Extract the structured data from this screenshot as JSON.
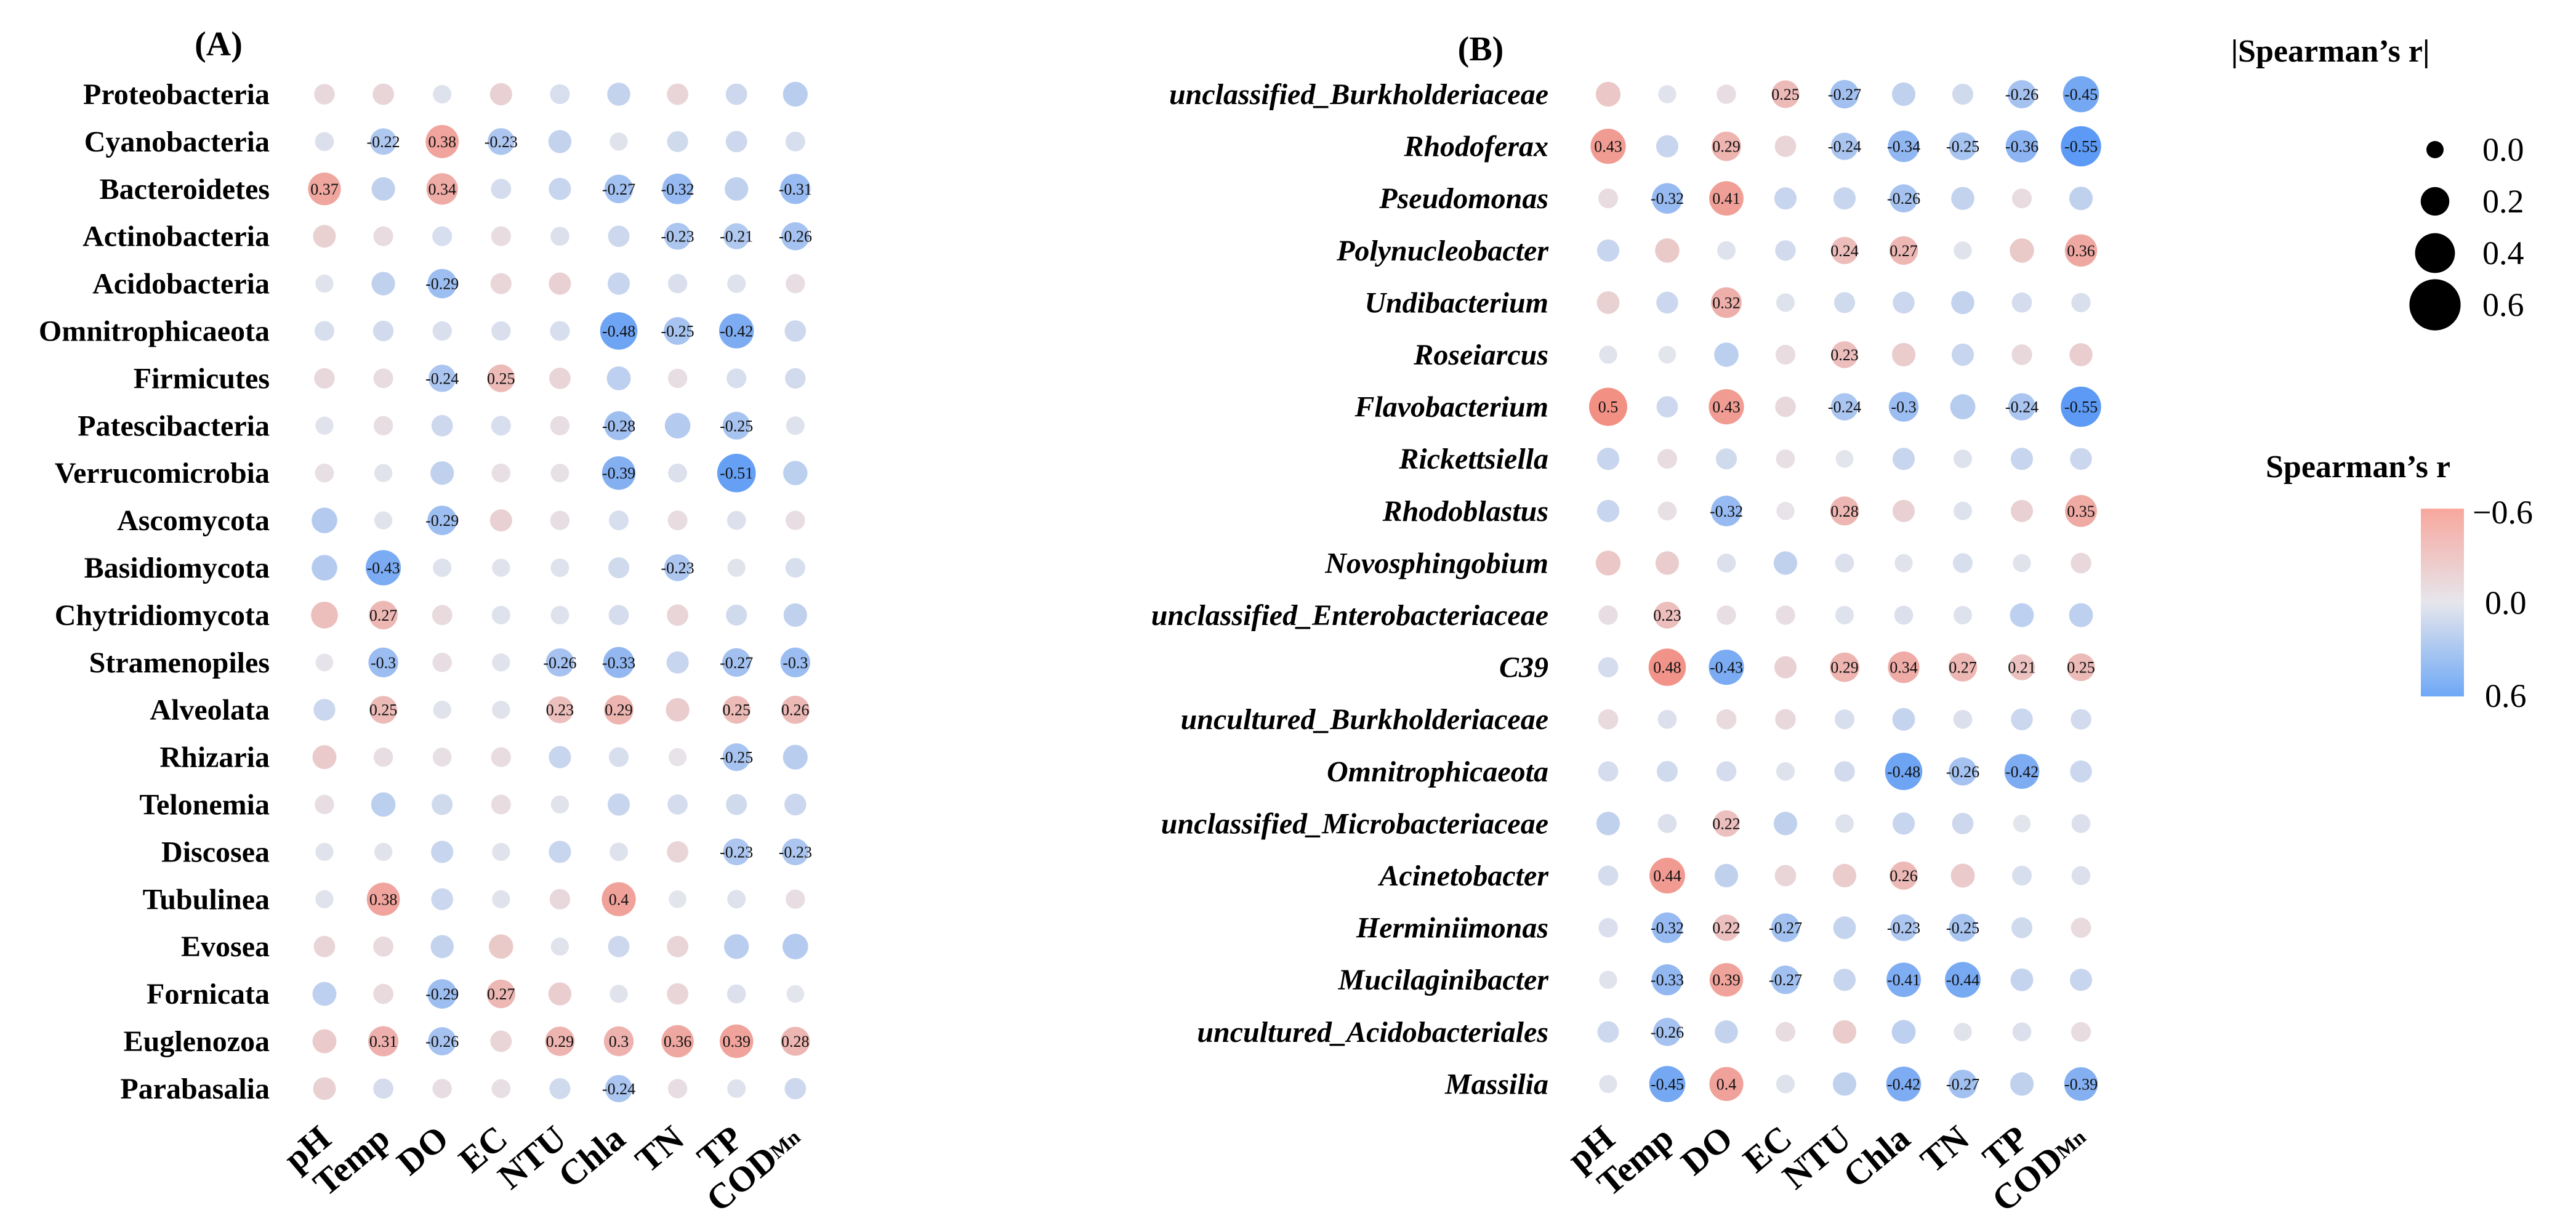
{
  "colors": {
    "positive": "#f4877a",
    "neutral": "#e6e6ec",
    "negative": "#5c9af5",
    "legend_top": "#f8a79e",
    "legend_bottom": "#6ea8f6"
  },
  "chart_data": [
    {
      "type": "heatmap",
      "title": "(A)",
      "columns": [
        "pH",
        "Temp",
        "DO",
        "EC",
        "NTU",
        "Chla",
        "TN",
        "TP",
        "COD"
      ],
      "column_subscript": {
        "COD": "Mn"
      },
      "rows": [
        "Proteobacteria",
        "Cyanobacteria",
        "Bacteroidetes",
        "Actinobacteria",
        "Acidobacteria",
        "Omnitrophicaeota",
        "Firmicutes",
        "Patescibacteria",
        "Verrucomicrobia",
        "Ascomycota",
        "Basidiomycota",
        "Chytridiomycota",
        "Stramenopiles",
        "Alveolata",
        "Rhizaria",
        "Telonemia",
        "Discosea",
        "Tubulinea",
        "Evosea",
        "Fornicata",
        "Euglenozoa",
        "Parabasalia"
      ],
      "row_italic": false,
      "values": [
        [
          0.08,
          0.1,
          -0.03,
          0.12,
          -0.06,
          -0.14,
          0.1,
          -0.1,
          -0.18
        ],
        [
          -0.04,
          -0.22,
          0.38,
          -0.23,
          -0.14,
          -0.02,
          -0.09,
          -0.1,
          -0.06
        ],
        [
          0.37,
          -0.15,
          0.34,
          -0.07,
          -0.12,
          -0.27,
          -0.32,
          -0.15,
          -0.31
        ],
        [
          0.13,
          0.06,
          -0.06,
          0.06,
          -0.04,
          -0.1,
          -0.23,
          -0.21,
          -0.26
        ],
        [
          -0.02,
          -0.15,
          -0.29,
          0.09,
          0.12,
          -0.12,
          -0.05,
          -0.03,
          0.05
        ],
        [
          -0.06,
          -0.08,
          -0.05,
          -0.05,
          -0.06,
          -0.48,
          -0.25,
          -0.42,
          -0.1
        ],
        [
          0.08,
          0.06,
          -0.24,
          0.25,
          0.1,
          -0.16,
          0.05,
          -0.06,
          -0.08
        ],
        [
          -0.02,
          0.05,
          -0.1,
          -0.06,
          0.05,
          -0.28,
          -0.2,
          -0.25,
          -0.03
        ],
        [
          0.04,
          -0.02,
          -0.15,
          0.04,
          0.03,
          -0.39,
          -0.04,
          -0.51,
          -0.17
        ],
        [
          -0.2,
          -0.02,
          -0.29,
          0.12,
          0.05,
          -0.06,
          0.06,
          -0.04,
          0.05
        ],
        [
          -0.2,
          -0.43,
          -0.03,
          -0.02,
          -0.03,
          -0.09,
          -0.23,
          -0.02,
          -0.06
        ],
        [
          0.23,
          0.27,
          0.07,
          -0.03,
          -0.03,
          -0.07,
          0.1,
          -0.09,
          -0.15
        ],
        [
          0.01,
          -0.3,
          0.05,
          -0.02,
          -0.26,
          -0.33,
          -0.12,
          -0.27,
          -0.3
        ],
        [
          -0.11,
          0.25,
          -0.02,
          -0.02,
          0.23,
          0.29,
          0.15,
          0.25,
          0.26
        ],
        [
          0.16,
          0.05,
          0.04,
          0.06,
          -0.12,
          -0.06,
          0.02,
          -0.25,
          -0.18
        ],
        [
          0.05,
          -0.17,
          -0.09,
          0.06,
          -0.02,
          -0.12,
          -0.07,
          -0.09,
          -0.11
        ],
        [
          -0.02,
          -0.02,
          -0.12,
          -0.02,
          -0.12,
          -0.03,
          0.1,
          -0.23,
          -0.23
        ],
        [
          -0.02,
          0.38,
          -0.11,
          -0.02,
          0.08,
          0.4,
          -0.01,
          -0.03,
          0.05
        ],
        [
          0.1,
          0.07,
          -0.14,
          0.17,
          -0.02,
          -0.1,
          0.1,
          -0.18,
          -0.2
        ],
        [
          -0.16,
          0.07,
          -0.29,
          0.27,
          0.14,
          -0.02,
          0.1,
          -0.04,
          -0.01
        ],
        [
          0.16,
          0.31,
          -0.26,
          0.1,
          0.29,
          0.3,
          0.36,
          0.39,
          0.28
        ],
        [
          0.13,
          -0.07,
          0.05,
          0.04,
          -0.09,
          -0.24,
          0.05,
          -0.03,
          -0.1
        ]
      ],
      "labels": [
        [
          null,
          null,
          null,
          null,
          null,
          null,
          null,
          null,
          null
        ],
        [
          null,
          "-0.22",
          "0.38",
          "-0.23",
          null,
          null,
          null,
          null,
          null
        ],
        [
          "0.37",
          null,
          "0.34",
          null,
          null,
          "-0.27",
          "-0.32",
          null,
          "-0.31"
        ],
        [
          null,
          null,
          null,
          null,
          null,
          null,
          "-0.23",
          "-0.21",
          "-0.26"
        ],
        [
          null,
          null,
          "-0.29",
          null,
          null,
          null,
          null,
          null,
          null
        ],
        [
          null,
          null,
          null,
          null,
          null,
          "-0.48",
          "-0.25",
          "-0.42",
          null
        ],
        [
          null,
          null,
          "-0.24",
          "0.25",
          null,
          null,
          null,
          null,
          null
        ],
        [
          null,
          null,
          null,
          null,
          null,
          "-0.28",
          null,
          "-0.25",
          null
        ],
        [
          null,
          null,
          null,
          null,
          null,
          "-0.39",
          null,
          "-0.51",
          null
        ],
        [
          null,
          null,
          "-0.29",
          null,
          null,
          null,
          null,
          null,
          null
        ],
        [
          null,
          "-0.43",
          null,
          null,
          null,
          null,
          "-0.23",
          null,
          null
        ],
        [
          null,
          "0.27",
          null,
          null,
          null,
          null,
          null,
          null,
          null
        ],
        [
          null,
          "-0.3",
          null,
          null,
          "-0.26",
          "-0.33",
          null,
          "-0.27",
          "-0.3"
        ],
        [
          null,
          "0.25",
          null,
          null,
          "0.23",
          "0.29",
          null,
          "0.25",
          "0.26"
        ],
        [
          null,
          null,
          null,
          null,
          null,
          null,
          null,
          "-0.25",
          null
        ],
        [
          null,
          null,
          null,
          null,
          null,
          null,
          null,
          null,
          null
        ],
        [
          null,
          null,
          null,
          null,
          null,
          null,
          null,
          "-0.23",
          "-0.23"
        ],
        [
          null,
          "0.38",
          null,
          null,
          null,
          "0.4",
          null,
          null,
          null
        ],
        [
          null,
          null,
          null,
          null,
          null,
          null,
          null,
          null,
          null
        ],
        [
          null,
          null,
          "-0.29",
          "0.27",
          null,
          null,
          null,
          null,
          null
        ],
        [
          null,
          "0.31",
          "-0.26",
          null,
          "0.29",
          "0.3",
          "0.36",
          "0.39",
          "0.28"
        ],
        [
          null,
          null,
          null,
          null,
          null,
          "-0.24",
          null,
          null,
          null
        ]
      ]
    },
    {
      "type": "heatmap",
      "title": "(B)",
      "columns": [
        "pH",
        "Temp",
        "DO",
        "EC",
        "NTU",
        "Chla",
        "TN",
        "TP",
        "COD"
      ],
      "column_subscript": {
        "COD": "Mn"
      },
      "rows": [
        "unclassified_Burkholderiaceae",
        "Rhodoferax",
        "Pseudomonas",
        "Polynucleobacter",
        "Undibacterium",
        "Roseiarcus",
        "Flavobacterium",
        "Rickettsiella",
        "Rhodoblastus",
        "Novosphingobium",
        "unclassified_Enterobacteriaceae",
        "C39",
        "uncultured_Burkholderiaceae",
        "Omnitrophicaeota",
        "unclassified_Microbacteriaceae",
        "Acinetobacter",
        "Herminiimonas",
        "Mucilaginibacter",
        "uncultured_Acidobacteriales",
        "Massilia"
      ],
      "row_italic": true,
      "values": [
        [
          0.18,
          -0.02,
          0.05,
          0.25,
          -0.27,
          -0.15,
          -0.09,
          -0.26,
          -0.45
        ],
        [
          0.43,
          -0.12,
          0.29,
          0.1,
          -0.24,
          -0.34,
          -0.25,
          -0.36,
          -0.55
        ],
        [
          0.06,
          -0.32,
          0.41,
          -0.12,
          -0.12,
          -0.26,
          -0.14,
          0.06,
          -0.15
        ],
        [
          -0.12,
          0.17,
          -0.03,
          -0.08,
          0.24,
          0.27,
          -0.02,
          0.17,
          0.36
        ],
        [
          0.13,
          -0.11,
          0.32,
          -0.03,
          -0.09,
          -0.11,
          -0.14,
          -0.07,
          -0.05
        ],
        [
          -0.02,
          -0.01,
          -0.17,
          0.06,
          0.23,
          0.15,
          -0.12,
          0.08,
          0.14
        ],
        [
          0.5,
          -0.1,
          0.43,
          0.08,
          -0.24,
          -0.3,
          -0.19,
          -0.24,
          -0.55
        ],
        [
          -0.12,
          0.06,
          -0.09,
          0.04,
          -0.01,
          -0.12,
          -0.03,
          -0.12,
          -0.11
        ],
        [
          -0.12,
          0.04,
          -0.32,
          0.02,
          0.28,
          0.12,
          -0.03,
          0.12,
          0.35
        ],
        [
          0.18,
          0.15,
          -0.04,
          -0.15,
          -0.04,
          -0.02,
          -0.06,
          -0.02,
          0.08
        ],
        [
          0.05,
          0.23,
          0.05,
          0.05,
          -0.03,
          -0.04,
          -0.03,
          -0.16,
          -0.16
        ],
        [
          -0.07,
          0.48,
          -0.43,
          0.12,
          0.29,
          0.34,
          0.27,
          0.21,
          0.25
        ],
        [
          0.07,
          -0.04,
          0.07,
          0.08,
          -0.06,
          -0.13,
          -0.04,
          -0.11,
          -0.08
        ],
        [
          -0.07,
          -0.09,
          -0.07,
          -0.03,
          -0.08,
          -0.48,
          -0.26,
          -0.42,
          -0.11
        ],
        [
          -0.15,
          -0.04,
          0.22,
          -0.15,
          -0.03,
          -0.12,
          -0.1,
          -0.01,
          -0.04
        ],
        [
          -0.07,
          0.44,
          -0.15,
          0.1,
          0.15,
          0.26,
          0.16,
          -0.06,
          -0.04
        ],
        [
          -0.05,
          -0.32,
          0.22,
          -0.27,
          -0.13,
          -0.23,
          -0.25,
          -0.09,
          0.07
        ],
        [
          -0.02,
          -0.33,
          0.39,
          -0.27,
          -0.12,
          -0.41,
          -0.44,
          -0.13,
          -0.12
        ],
        [
          -0.1,
          -0.26,
          -0.14,
          0.06,
          0.15,
          -0.16,
          -0.02,
          -0.04,
          0.06
        ],
        [
          -0.02,
          -0.45,
          0.4,
          -0.03,
          -0.15,
          -0.42,
          -0.27,
          -0.15,
          -0.39
        ]
      ],
      "labels": [
        [
          null,
          null,
          null,
          "0.25",
          "-0.27",
          null,
          null,
          "-0.26",
          "-0.45"
        ],
        [
          "0.43",
          null,
          "0.29",
          null,
          "-0.24",
          "-0.34",
          "-0.25",
          "-0.36",
          "-0.55"
        ],
        [
          null,
          "-0.32",
          "0.41",
          null,
          null,
          "-0.26",
          null,
          null,
          null
        ],
        [
          null,
          null,
          null,
          null,
          "0.24",
          "0.27",
          null,
          null,
          "0.36"
        ],
        [
          null,
          null,
          "0.32",
          null,
          null,
          null,
          null,
          null,
          null
        ],
        [
          null,
          null,
          null,
          null,
          "0.23",
          null,
          null,
          null,
          null
        ],
        [
          "0.5",
          null,
          "0.43",
          null,
          "-0.24",
          "-0.3",
          null,
          "-0.24",
          "-0.55"
        ],
        [
          null,
          null,
          null,
          null,
          null,
          null,
          null,
          null,
          null
        ],
        [
          null,
          null,
          "-0.32",
          null,
          "0.28",
          null,
          null,
          null,
          "0.35"
        ],
        [
          null,
          null,
          null,
          null,
          null,
          null,
          null,
          null,
          null
        ],
        [
          null,
          "0.23",
          null,
          null,
          null,
          null,
          null,
          null,
          null
        ],
        [
          null,
          "0.48",
          "-0.43",
          null,
          "0.29",
          "0.34",
          "0.27",
          "0.21",
          "0.25"
        ],
        [
          null,
          null,
          null,
          null,
          null,
          null,
          null,
          null,
          null
        ],
        [
          null,
          null,
          null,
          null,
          null,
          "-0.48",
          "-0.26",
          "-0.42",
          null
        ],
        [
          null,
          null,
          "0.22",
          null,
          null,
          null,
          null,
          null,
          null
        ],
        [
          null,
          "0.44",
          null,
          null,
          null,
          "0.26",
          null,
          null,
          null
        ],
        [
          null,
          "-0.32",
          "0.22",
          "-0.27",
          null,
          "-0.23",
          "-0.25",
          null,
          null
        ],
        [
          null,
          "-0.33",
          "0.39",
          "-0.27",
          null,
          "-0.41",
          "-0.44",
          null,
          null
        ],
        [
          null,
          "-0.26",
          null,
          null,
          null,
          null,
          null,
          null,
          null
        ],
        [
          null,
          "-0.45",
          "0.4",
          null,
          null,
          "-0.42",
          "-0.27",
          null,
          "-0.39"
        ]
      ]
    }
  ],
  "legend": {
    "size_title": "|Spearman’s r|",
    "size_values": [
      "0.0",
      "0.2",
      "0.4",
      "0.6"
    ],
    "size_magnitudes": [
      0.0,
      0.2,
      0.4,
      0.6
    ],
    "color_title": "Spearman’s r",
    "color_ticks": [
      "−0.6",
      "0.0",
      "0.6"
    ]
  }
}
